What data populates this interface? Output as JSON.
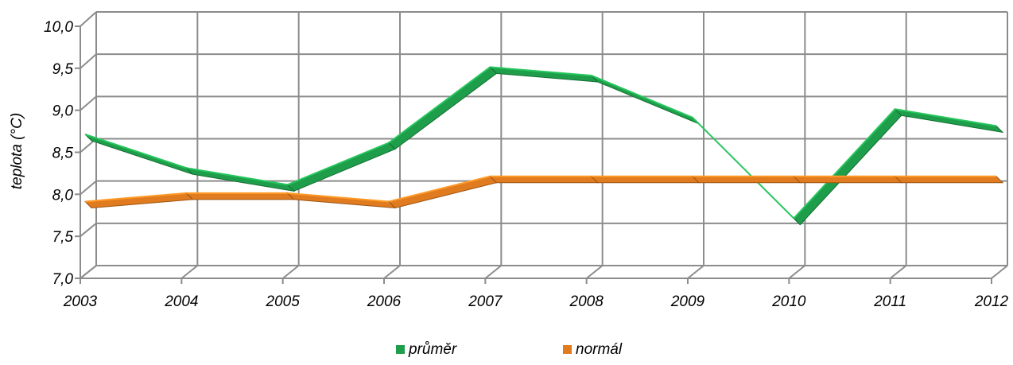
{
  "chart_data": {
    "type": "line",
    "title": "",
    "xlabel": "",
    "ylabel": "teplota (°C)",
    "ylim": [
      7.0,
      10.0
    ],
    "yticks": [
      "7,0",
      "7,5",
      "8,0",
      "8,5",
      "9,0",
      "9,5",
      "10,0"
    ],
    "categories": [
      "2003",
      "2004",
      "2005",
      "2006",
      "2007",
      "2008",
      "2009",
      "2010",
      "2011",
      "2012"
    ],
    "grid": true,
    "legend_position": "bottom",
    "series": [
      {
        "name": "průměr",
        "color": "#1e9e4a",
        "values": [
          8.6,
          8.2,
          8.0,
          8.5,
          9.4,
          9.3,
          8.8,
          7.6,
          8.9,
          8.7
        ]
      },
      {
        "name": "normál",
        "color": "#e07b1f",
        "values": [
          7.8,
          7.9,
          7.9,
          7.8,
          8.1,
          8.1,
          8.1,
          8.1,
          8.1,
          8.1
        ]
      }
    ]
  }
}
